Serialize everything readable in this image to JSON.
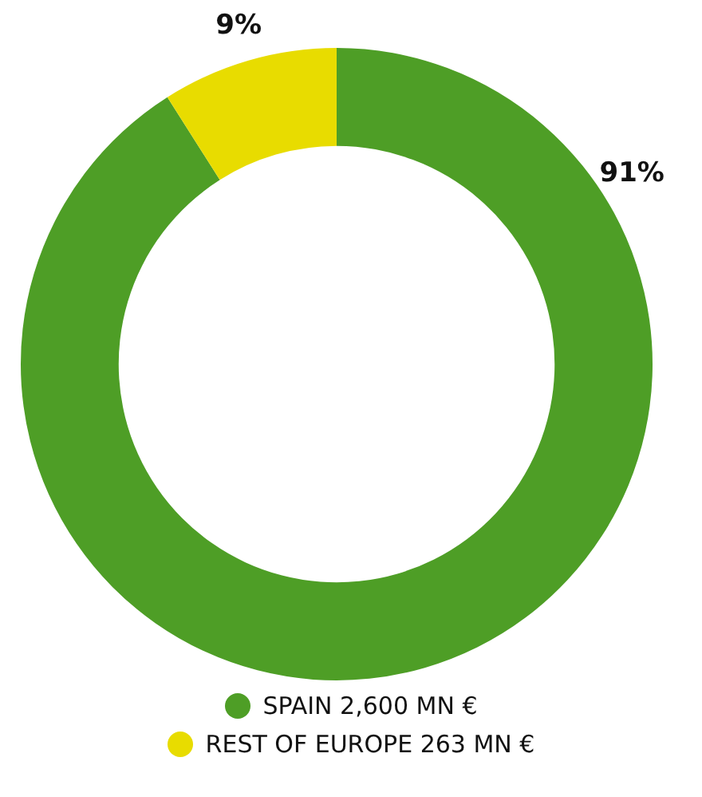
{
  "chart_data": {
    "type": "donut",
    "categories": [
      "SPAIN 2,600 MN €",
      "REST OF EUROPE 263 MN €"
    ],
    "values": [
      91,
      9
    ],
    "colors": [
      "#4e9e26",
      "#e8dc00"
    ],
    "value_labels": [
      "91%",
      "9%"
    ],
    "legend": "bottom"
  }
}
